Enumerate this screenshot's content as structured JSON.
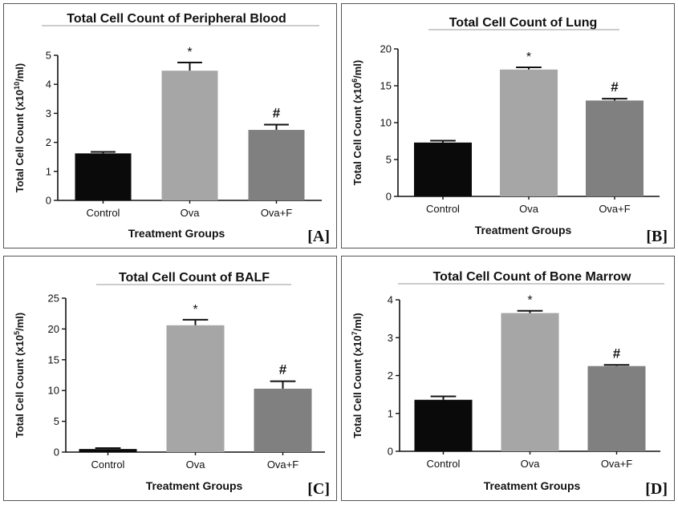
{
  "chart_data": [
    {
      "type": "bar",
      "panel_label": "[A]",
      "title": "Total Cell Count of Peripheral Blood",
      "ylabel_pre": "Total Cell  Count (x10",
      "ylabel_sup": "10",
      "ylabel_post": "/ml)",
      "xlabel": "Treatment Groups",
      "categories": [
        "Control",
        "Ova",
        "Ova+F"
      ],
      "values": [
        1.62,
        4.47,
        2.43
      ],
      "errors": [
        0.05,
        0.28,
        0.18
      ],
      "markers": [
        "",
        "*",
        "#"
      ],
      "colors": [
        "#0a0a0a",
        "#a6a6a6",
        "#808080"
      ],
      "ylim": [
        0,
        5
      ],
      "yticks": [
        0,
        1,
        2,
        3,
        4,
        5
      ]
    },
    {
      "type": "bar",
      "panel_label": "[B]",
      "title": "Total Cell Count of Lung",
      "ylabel_pre": "Total Cell  Count (x10",
      "ylabel_sup": "6",
      "ylabel_post": "/ml)",
      "xlabel": "Treatment Groups",
      "categories": [
        "Control",
        "Ova",
        "Ova+F"
      ],
      "values": [
        7.3,
        17.2,
        13.0
      ],
      "errors": [
        0.25,
        0.3,
        0.25
      ],
      "markers": [
        "",
        "*",
        "#"
      ],
      "colors": [
        "#0a0a0a",
        "#a6a6a6",
        "#808080"
      ],
      "ylim": [
        0,
        20
      ],
      "yticks": [
        0,
        5,
        10,
        15,
        20
      ]
    },
    {
      "type": "bar",
      "panel_label": "[C]",
      "title": "Total Cell Count of BALF",
      "ylabel_pre": "Total Cell  Count (x10",
      "ylabel_sup": "5",
      "ylabel_post": "/ml)",
      "xlabel": "Treatment Groups",
      "categories": [
        "Control",
        "Ova",
        "Ova+F"
      ],
      "values": [
        0.5,
        20.6,
        10.3
      ],
      "errors": [
        0.15,
        0.9,
        1.2
      ],
      "markers": [
        "",
        "*",
        "#"
      ],
      "colors": [
        "#0a0a0a",
        "#a6a6a6",
        "#808080"
      ],
      "ylim": [
        0,
        25
      ],
      "yticks": [
        0,
        5,
        10,
        15,
        20,
        25
      ]
    },
    {
      "type": "bar",
      "panel_label": "[D]",
      "title": "Total Cell Count of Bone Marrow",
      "ylabel_pre": "Total Cell  Count (x10",
      "ylabel_sup": "7",
      "ylabel_post": "/ml)",
      "xlabel": "Treatment Groups",
      "categories": [
        "Control",
        "Ova",
        "Ova+F"
      ],
      "values": [
        1.36,
        3.65,
        2.25
      ],
      "errors": [
        0.09,
        0.06,
        0.03
      ],
      "markers": [
        "",
        "*",
        "#"
      ],
      "colors": [
        "#0a0a0a",
        "#a6a6a6",
        "#808080"
      ],
      "ylim": [
        0,
        4
      ],
      "yticks": [
        0,
        1,
        2,
        3,
        4
      ]
    }
  ]
}
